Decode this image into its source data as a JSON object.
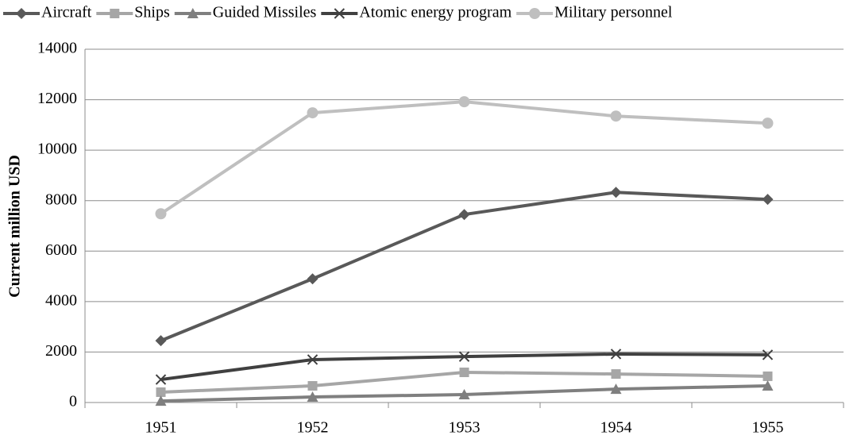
{
  "chart_data": {
    "type": "line",
    "y_label": "Current million  USD",
    "categories": [
      "1951",
      "1952",
      "1953",
      "1954",
      "1955"
    ],
    "series": [
      {
        "name": "Aircraft",
        "color": "#595959",
        "marker": "diamond",
        "values": [
          2450,
          4900,
          7450,
          8330,
          8050
        ]
      },
      {
        "name": "Ships",
        "color": "#a6a6a6",
        "marker": "square",
        "values": [
          410,
          660,
          1195,
          1130,
          1040
        ]
      },
      {
        "name": "Guided Missiles",
        "color": "#7f7f7f",
        "marker": "triangle",
        "values": [
          60,
          220,
          315,
          530,
          660
        ]
      },
      {
        "name": "Atomic energy program",
        "color": "#404040",
        "marker": "x",
        "values": [
          910,
          1700,
          1820,
          1920,
          1890
        ]
      },
      {
        "name": "Military personnel",
        "color": "#bfbfbf",
        "marker": "circle",
        "values": [
          7480,
          11480,
          11920,
          11350,
          11070
        ]
      }
    ],
    "ylim": [
      0,
      14000
    ],
    "yticks": [
      0,
      2000,
      4000,
      6000,
      8000,
      10000,
      12000,
      14000
    ],
    "grid": true,
    "legend": "top"
  }
}
